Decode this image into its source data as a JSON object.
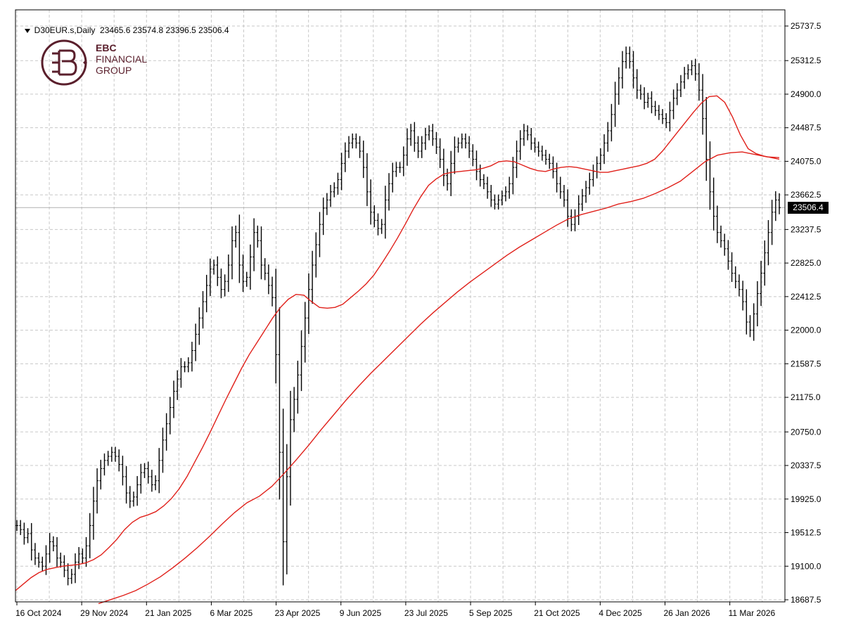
{
  "header": {
    "symbol": "D30EUR.s,Daily",
    "ohlc": "23465.6 23574.8 23396.5 23506.4"
  },
  "logo": {
    "line1": "EBC",
    "line2": "FINANCIAL",
    "line3": "GROUP"
  },
  "current_price_label": "23506.4",
  "colors": {
    "candles": "#000000",
    "ma": "#e0201a",
    "grid": "#c8c8c8",
    "brand": "#5a1f2c"
  },
  "chart_data": {
    "type": "ohlc",
    "title": "D30EUR.s,Daily",
    "ylim": [
      18600,
      25900
    ],
    "y_ticks": [
      18687.5,
      19100.0,
      19512.5,
      19925.0,
      20337.5,
      20750.0,
      21175.0,
      21587.5,
      22000.0,
      22412.5,
      22825.0,
      23237.5,
      23662.5,
      24075.0,
      24487.5,
      24900.0,
      25312.5,
      25737.5
    ],
    "x_ticks": [
      "16 Oct 2024",
      "29 Nov 2024",
      "21 Jan 2025",
      "6 Mar 2025",
      "23 Apr 2025",
      "9 Jun 2025",
      "23 Jul 2025",
      "5 Sep 2025",
      "21 Oct 2025",
      "4 Dec 2025",
      "26 Jan 2026",
      "11 Mar 2026"
    ],
    "grid": true,
    "current_price": 23506.4,
    "closes": [
      19600,
      19550,
      19450,
      19500,
      19300,
      19200,
      19150,
      19100,
      19250,
      19400,
      19350,
      19200,
      19150,
      19050,
      18950,
      19000,
      19150,
      19250,
      19200,
      19350,
      19600,
      19900,
      20150,
      20300,
      20400,
      20450,
      20500,
      20450,
      20350,
      20200,
      20000,
      19900,
      19950,
      20100,
      20250,
      20300,
      20200,
      20100,
      20150,
      20400,
      20650,
      20850,
      21050,
      21250,
      21400,
      21550,
      21550,
      21600,
      21750,
      21950,
      22150,
      22350,
      22550,
      22750,
      22800,
      22650,
      22500,
      22600,
      22800,
      23100,
      23200,
      22800,
      22600,
      22650,
      22900,
      23200,
      23100,
      22800,
      22700,
      22550,
      22400,
      21700,
      20500,
      19400,
      20200,
      20900,
      21150,
      21450,
      21800,
      22150,
      22500,
      22800,
      23050,
      23300,
      23500,
      23600,
      23700,
      23750,
      23850,
      24050,
      24200,
      24300,
      24350,
      24300,
      24200,
      24000,
      23700,
      23450,
      23350,
      23250,
      23300,
      23600,
      23800,
      23950,
      24000,
      24000,
      24150,
      24350,
      24450,
      24300,
      24200,
      24300,
      24400,
      24450,
      24350,
      24250,
      24100,
      23900,
      23800,
      24050,
      24250,
      24300,
      24350,
      24300,
      24200,
      24100,
      23950,
      23850,
      23800,
      23700,
      23600,
      23550,
      23600,
      23650,
      23700,
      23800,
      24000,
      24200,
      24350,
      24450,
      24400,
      24300,
      24250,
      24200,
      24150,
      24100,
      24050,
      23950,
      23800,
      23700,
      23600,
      23400,
      23300,
      23400,
      23550,
      23650,
      23750,
      23850,
      23950,
      24050,
      24150,
      24300,
      24450,
      24650,
      24900,
      25100,
      25300,
      25400,
      25300,
      25100,
      24950,
      24900,
      24800,
      24850,
      24750,
      24700,
      24650,
      24600,
      24550,
      24700,
      24850,
      24950,
      25050,
      25150,
      25200,
      25250,
      25150,
      24950,
      24600,
      24100,
      23700,
      23400,
      23200,
      23100,
      23000,
      22850,
      22700,
      22600,
      22500,
      22350,
      22100,
      22000,
      22200,
      22450,
      22700,
      22950,
      23200,
      23450,
      23600,
      23506.4
    ],
    "ma_fast": [
      18800,
      18880,
      18960,
      19020,
      19060,
      19080,
      19100,
      19110,
      19120,
      19140,
      19180,
      19240,
      19330,
      19430,
      19550,
      19640,
      19700,
      19730,
      19770,
      19840,
      19930,
      20050,
      20200,
      20380,
      20560,
      20750,
      20950,
      21150,
      21340,
      21530,
      21700,
      21850,
      22000,
      22150,
      22280,
      22380,
      22440,
      22430,
      22350,
      22280,
      22270,
      22280,
      22320,
      22400,
      22480,
      22570,
      22680,
      22820,
      22970,
      23130,
      23300,
      23480,
      23640,
      23780,
      23860,
      23920,
      23940,
      23950,
      23960,
      23970,
      23990,
      24020,
      24070,
      24080,
      24070,
      24030,
      23990,
      23960,
      23950,
      23980,
      24000,
      24010,
      24000,
      23980,
      23960,
      23940,
      23940,
      23960,
      23980,
      24000,
      24020,
      24050,
      24100,
      24200,
      24320,
      24440,
      24560,
      24680,
      24790,
      24870,
      24880,
      24800,
      24620,
      24400,
      24230,
      24170,
      24140,
      24120,
      24100
    ],
    "ma_slow": [
      18640,
      18690,
      18740,
      18800,
      18880,
      18970,
      19080,
      19200,
      19330,
      19470,
      19620,
      19760,
      19880,
      19960,
      20080,
      20240,
      20410,
      20590,
      20780,
      20960,
      21140,
      21310,
      21470,
      21620,
      21770,
      21920,
      22070,
      22210,
      22340,
      22470,
      22590,
      22700,
      22810,
      22920,
      23020,
      23110,
      23200,
      23290,
      23370,
      23420,
      23460,
      23500,
      23550,
      23580,
      23620,
      23680,
      23750,
      23830,
      23950,
      24070,
      24150,
      24180,
      24190,
      24160,
      24130,
      24120
    ]
  }
}
